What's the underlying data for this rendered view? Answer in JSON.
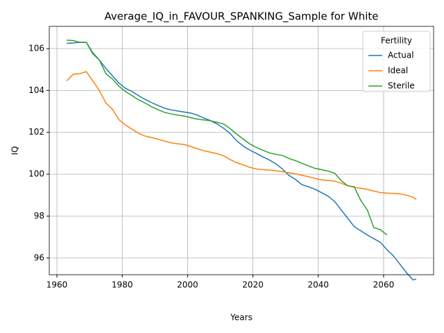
{
  "chart_data": {
    "type": "line",
    "title": "Average_IQ_in_FAVOUR_SPANKING_Sample for White",
    "x_label": "Years",
    "y_label": "IQ",
    "x": [
      1963,
      1965,
      1967,
      1969,
      1971,
      1973,
      1975,
      1977,
      1979,
      1981,
      1983,
      1985,
      1987,
      1989,
      1991,
      1993,
      1995,
      1997,
      1999,
      2001,
      2003,
      2005,
      2007,
      2009,
      2011,
      2013,
      2015,
      2017,
      2019,
      2021,
      2023,
      2025,
      2027,
      2029,
      2031,
      2033,
      2035,
      2037,
      2039,
      2041,
      2043,
      2045,
      2047,
      2049,
      2051,
      2053,
      2055,
      2057,
      2059,
      2061,
      2063,
      2065,
      2067,
      2069,
      2070
    ],
    "series": [
      {
        "name": "Actual",
        "color": "#1f77b4",
        "values": [
          106.25,
          106.27,
          106.3,
          106.3,
          105.75,
          105.45,
          105.05,
          104.7,
          104.35,
          104.1,
          103.95,
          103.75,
          103.57,
          103.42,
          103.28,
          103.15,
          103.07,
          103.02,
          102.97,
          102.92,
          102.82,
          102.68,
          102.56,
          102.4,
          102.2,
          101.95,
          101.6,
          101.35,
          101.15,
          101.0,
          100.83,
          100.68,
          100.5,
          100.25,
          99.95,
          99.75,
          99.5,
          99.4,
          99.28,
          99.12,
          98.95,
          98.7,
          98.3,
          97.9,
          97.5,
          97.3,
          97.1,
          96.92,
          96.75,
          96.4,
          96.1,
          95.7,
          95.3,
          94.95,
          95.0
        ]
      },
      {
        "name": "Ideal",
        "color": "#ff7f0e",
        "values": [
          104.45,
          104.78,
          104.8,
          104.9,
          104.45,
          104.0,
          103.4,
          103.1,
          102.6,
          102.35,
          102.15,
          101.95,
          101.82,
          101.75,
          101.67,
          101.58,
          101.5,
          101.45,
          101.42,
          101.32,
          101.22,
          101.12,
          101.05,
          100.98,
          100.88,
          100.7,
          100.55,
          100.45,
          100.33,
          100.25,
          100.22,
          100.2,
          100.17,
          100.12,
          100.07,
          100.02,
          99.95,
          99.88,
          99.8,
          99.73,
          99.7,
          99.67,
          99.57,
          99.45,
          99.38,
          99.33,
          99.28,
          99.2,
          99.12,
          99.1,
          99.08,
          99.06,
          99.0,
          98.9,
          98.8
        ]
      },
      {
        "name": "Sterile",
        "color": "#2ca02c",
        "values": [
          106.4,
          106.38,
          106.3,
          106.3,
          105.8,
          105.45,
          104.8,
          104.55,
          104.2,
          103.95,
          103.75,
          103.55,
          103.4,
          103.22,
          103.08,
          102.95,
          102.88,
          102.82,
          102.78,
          102.7,
          102.63,
          102.59,
          102.55,
          102.48,
          102.4,
          102.18,
          101.92,
          101.68,
          101.45,
          101.28,
          101.15,
          101.02,
          100.95,
          100.9,
          100.75,
          100.65,
          100.52,
          100.4,
          100.28,
          100.22,
          100.15,
          100.05,
          99.7,
          99.45,
          99.4,
          98.75,
          98.3,
          97.45,
          97.35,
          97.1,
          null,
          null,
          null,
          null,
          null
        ]
      }
    ],
    "xlim": [
      1957.66,
      2075.3
    ],
    "xticks": [
      1960,
      1980,
      2000,
      2020,
      2040,
      2060
    ],
    "ylim": [
      95.2,
      107.06
    ],
    "yticks": [
      96,
      98,
      100,
      102,
      104,
      106
    ],
    "grid": true,
    "legend_title": "Fertility",
    "legend_position": "upper right"
  }
}
